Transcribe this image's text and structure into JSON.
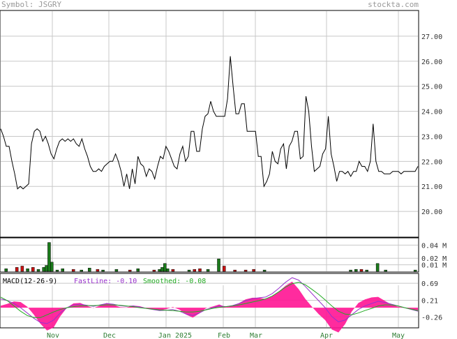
{
  "header": {
    "symbol_text": "Symbol: JSGRY",
    "site_text": "stockta.com"
  },
  "colors": {
    "grid": "#c8c8c8",
    "price_line": "#000000",
    "vol_up": "#1a7a1a",
    "vol_down": "#cc1111",
    "histogram": "#ff1493",
    "fast_line": "#9932cc",
    "smooth_line": "#22aa22",
    "x_labels": "#2e7d32"
  },
  "chart_data": [
    {
      "type": "line",
      "panel": "price",
      "y_ticks": [
        "27.00",
        "26.00",
        "25.00",
        "24.00",
        "23.00",
        "22.00",
        "21.00",
        "20.00"
      ],
      "ylim": [
        19.0,
        28.0
      ],
      "x": [
        0,
        1,
        2,
        3,
        4,
        5,
        6,
        7,
        8,
        9,
        10,
        11,
        12,
        13,
        14,
        15,
        16,
        17,
        18,
        19,
        20,
        21,
        22,
        23,
        24,
        25,
        26,
        27,
        28,
        29,
        30,
        31,
        32,
        33,
        34,
        35,
        36,
        37,
        38,
        39,
        40,
        41,
        42,
        43,
        44,
        45,
        46,
        47,
        48,
        49,
        50,
        51,
        52,
        53,
        54,
        55,
        56,
        57,
        58,
        59,
        60,
        61,
        62,
        63,
        64,
        65,
        66,
        67,
        68,
        69,
        70,
        71,
        72,
        73,
        74,
        75,
        76,
        77,
        78,
        79,
        80,
        81,
        82,
        83,
        84,
        85,
        86,
        87,
        88,
        89,
        90,
        91,
        92,
        93,
        94,
        95,
        96,
        97,
        98,
        99,
        100,
        101,
        102,
        103,
        104,
        105,
        106,
        107,
        108,
        109,
        110,
        111,
        112,
        113,
        114,
        115,
        116,
        117,
        118,
        119,
        120,
        121,
        122,
        123,
        124,
        125,
        126,
        127,
        128,
        129,
        130,
        131,
        132,
        133,
        134,
        135,
        136,
        137,
        138,
        139,
        140,
        141,
        142,
        143,
        144,
        145,
        146,
        147,
        148,
        149
      ],
      "values": [
        23.3,
        23.0,
        22.6,
        22.6,
        22.0,
        21.5,
        20.9,
        21.0,
        20.9,
        21.0,
        21.1,
        22.7,
        23.2,
        23.3,
        23.2,
        22.8,
        23.0,
        22.7,
        22.3,
        22.1,
        22.5,
        22.8,
        22.9,
        22.8,
        22.9,
        22.8,
        22.9,
        22.7,
        22.6,
        22.9,
        22.5,
        22.2,
        21.8,
        21.6,
        21.6,
        21.7,
        21.6,
        21.8,
        21.9,
        22.0,
        22.0,
        22.3,
        22.0,
        21.6,
        21.0,
        21.5,
        20.9,
        21.7,
        21.1,
        22.2,
        21.9,
        21.8,
        21.4,
        21.7,
        21.6,
        21.3,
        21.8,
        22.2,
        22.1,
        22.6,
        22.4,
        22.1,
        21.8,
        21.7,
        22.3,
        22.6,
        22.0,
        22.2,
        23.2,
        23.2,
        22.4,
        22.4,
        23.3,
        23.8,
        23.9,
        24.4,
        24.0,
        23.8,
        23.8,
        23.8,
        23.8,
        24.5,
        26.2,
        25.0,
        23.9,
        23.9,
        24.3,
        24.3,
        23.2,
        23.2,
        23.2,
        23.2,
        22.2,
        22.2,
        21.0,
        21.2,
        21.5,
        22.4,
        22.0,
        21.9,
        22.5,
        22.7,
        21.7,
        22.6,
        22.8,
        23.2,
        23.2,
        22.1,
        22.2,
        24.6,
        24.0,
        22.6,
        21.6,
        21.7,
        21.8,
        22.3,
        22.5,
        23.8,
        22.3,
        21.8,
        21.2,
        21.6,
        21.6,
        21.5,
        21.6,
        21.4,
        21.6,
        21.6,
        22.0,
        21.8,
        21.8,
        21.6,
        22.0,
        23.5,
        22.0,
        21.6,
        21.6,
        21.5,
        21.5,
        21.5,
        21.6,
        21.6,
        21.6,
        21.5,
        21.6,
        21.6,
        21.6,
        21.6,
        21.6,
        21.8
      ]
    },
    {
      "type": "bar",
      "panel": "volume",
      "y_ticks": [
        "0.04 M",
        "0.02 M",
        "0.01 M"
      ],
      "ylim": [
        0,
        0.05
      ],
      "bars": [
        [
          2,
          0.004,
          "up"
        ],
        [
          6,
          0.006,
          "down"
        ],
        [
          8,
          0.008,
          "down"
        ],
        [
          10,
          0.004,
          "up"
        ],
        [
          12,
          0.006,
          "down"
        ],
        [
          14,
          0.003,
          "up"
        ],
        [
          16,
          0.006,
          "up"
        ],
        [
          17,
          0.009,
          "up"
        ],
        [
          18,
          0.044,
          "up"
        ],
        [
          19,
          0.014,
          "up"
        ],
        [
          21,
          0.002,
          "up"
        ],
        [
          23,
          0.004,
          "up"
        ],
        [
          27,
          0.003,
          "down"
        ],
        [
          30,
          0.002,
          "up"
        ],
        [
          33,
          0.005,
          "up"
        ],
        [
          36,
          0.003,
          "down"
        ],
        [
          38,
          0.002,
          "up"
        ],
        [
          43,
          0.003,
          "up"
        ],
        [
          48,
          0.002,
          "down"
        ],
        [
          51,
          0.004,
          "up"
        ],
        [
          57,
          0.002,
          "down"
        ],
        [
          59,
          0.003,
          "up"
        ],
        [
          60,
          0.006,
          "up"
        ],
        [
          61,
          0.012,
          "up"
        ],
        [
          62,
          0.004,
          "up"
        ],
        [
          64,
          0.003,
          "down"
        ],
        [
          70,
          0.002,
          "up"
        ],
        [
          72,
          0.003,
          "down"
        ],
        [
          74,
          0.004,
          "down"
        ],
        [
          77,
          0.003,
          "up"
        ],
        [
          81,
          0.019,
          "up"
        ],
        [
          83,
          0.008,
          "down"
        ],
        [
          87,
          0.002,
          "down"
        ],
        [
          91,
          0.002,
          "down"
        ],
        [
          94,
          0.003,
          "down"
        ],
        [
          98,
          0.002,
          "up"
        ],
        [
          130,
          0.002,
          "up"
        ],
        [
          132,
          0.003,
          "up"
        ],
        [
          134,
          0.003,
          "down"
        ],
        [
          136,
          0.002,
          "up"
        ],
        [
          140,
          0.012,
          "up"
        ],
        [
          143,
          0.002,
          "up"
        ],
        [
          154,
          0.002,
          "up"
        ]
      ]
    },
    {
      "type": "line",
      "panel": "macd",
      "title": "MACD(12-26-9)",
      "fast_label": "FastLine: -0.10",
      "smooth_label": "Smoothed: -0.08",
      "y_ticks": [
        "0.69",
        "0.21",
        "-0.26"
      ],
      "ylim": [
        -0.55,
        0.95
      ],
      "series": [
        {
          "name": "FastLine",
          "values": [
            0.25,
            0.2,
            0.12,
            0.0,
            -0.15,
            -0.3,
            -0.42,
            -0.45,
            -0.35,
            -0.15,
            0.0,
            0.08,
            0.1,
            0.07,
            0.04,
            0.08,
            0.12,
            0.1,
            0.06,
            0.04,
            0.05,
            0.02,
            -0.02,
            -0.05,
            -0.08,
            -0.07,
            -0.05,
            -0.1,
            -0.18,
            -0.22,
            -0.15,
            -0.05,
            0.0,
            0.05,
            0.03,
            0.06,
            0.12,
            0.2,
            0.25,
            0.28,
            0.3,
            0.4,
            0.55,
            0.72,
            0.85,
            0.78,
            0.6,
            0.4,
            0.2,
            0.0,
            -0.25,
            -0.4,
            -0.35,
            -0.2,
            -0.05,
            0.05,
            0.12,
            0.18,
            0.15,
            0.1,
            0.05,
            0.0,
            -0.05,
            -0.1
          ]
        },
        {
          "name": "Smoothed",
          "values": [
            0.3,
            0.2,
            0.05,
            -0.1,
            -0.22,
            -0.28,
            -0.28,
            -0.2,
            -0.12,
            -0.05,
            0.0,
            0.03,
            0.05,
            0.06,
            0.06,
            0.07,
            0.08,
            0.08,
            0.07,
            0.05,
            0.03,
            0.0,
            -0.02,
            -0.04,
            -0.06,
            -0.07,
            -0.08,
            -0.1,
            -0.12,
            -0.12,
            -0.1,
            -0.06,
            -0.02,
            0.01,
            0.03,
            0.05,
            0.08,
            0.12,
            0.16,
            0.2,
            0.25,
            0.33,
            0.45,
            0.58,
            0.68,
            0.72,
            0.65,
            0.52,
            0.38,
            0.22,
            0.05,
            -0.1,
            -0.18,
            -0.2,
            -0.15,
            -0.08,
            -0.02,
            0.05,
            0.08,
            0.08,
            0.05,
            0.0,
            -0.04,
            -0.08
          ]
        }
      ]
    }
  ],
  "x_labels": [
    "Nov",
    "Dec",
    "Jan 2025",
    "Feb",
    "Mar",
    "Apr",
    "May"
  ]
}
